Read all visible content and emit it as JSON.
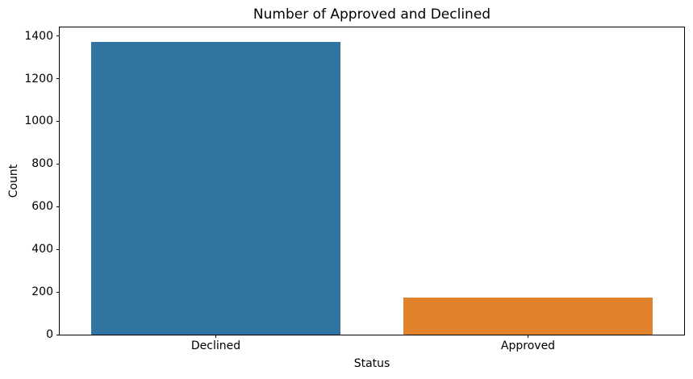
{
  "chart_data": {
    "type": "bar",
    "title": "Number of Approved and Declined",
    "xlabel": "Status",
    "ylabel": "Count",
    "categories": [
      "Declined",
      "Approved"
    ],
    "values": [
      1372,
      175
    ],
    "bar_colors": [
      "#3274a1",
      "#e1812c"
    ],
    "ylim": [
      0,
      1440
    ],
    "yticks": [
      0,
      200,
      400,
      600,
      800,
      1000,
      1200,
      1400
    ],
    "bar_width_fraction": 0.8,
    "grid": false,
    "legend_position": "none",
    "background_color": "#ffffff",
    "spine_color": "#000000"
  }
}
